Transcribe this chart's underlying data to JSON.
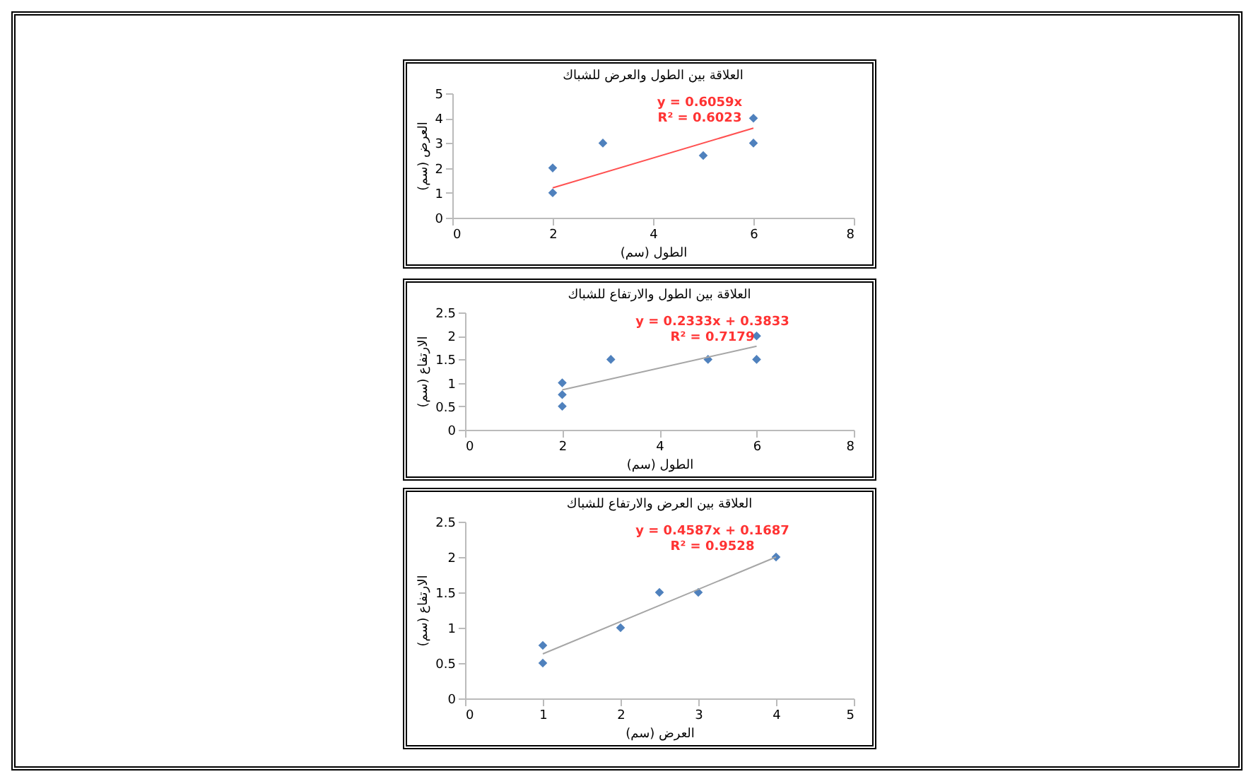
{
  "chart_data": [
    {
      "type": "scatter",
      "title": "العلاقة بين الطول والعرض للشباك",
      "xlabel": "الطول (سم)",
      "ylabel": "العرض (سم)",
      "marker": "diamond",
      "grid": false,
      "xlim": [
        0,
        8
      ],
      "xticks": [
        0,
        2,
        4,
        6,
        8
      ],
      "ylim": [
        0,
        5
      ],
      "yticks": [
        0,
        1,
        2,
        3,
        4,
        5
      ],
      "annotations": [
        "y = 0.6059x",
        "R² = 0.6023"
      ],
      "series": [
        {
          "color": "#4f81bd",
          "x": [
            2,
            2,
            3,
            5,
            6,
            6
          ],
          "values": [
            1,
            2,
            3,
            2.5,
            3,
            4
          ]
        },
        {
          "type": "line",
          "marker": "none",
          "color": "#ff5050",
          "x": [
            2,
            6
          ],
          "values": [
            1.2,
            3.6
          ]
        }
      ]
    },
    {
      "type": "scatter",
      "title": "العلاقة بين الطول والارتفاع للشباك",
      "xlabel": "الطول (سم)",
      "ylabel": "الارتفاع (سم)",
      "marker": "diamond",
      "grid": false,
      "xlim": [
        0,
        8
      ],
      "xticks": [
        0,
        2,
        4,
        6,
        8
      ],
      "ylim": [
        0,
        2.5
      ],
      "yticks": [
        0,
        0.5,
        1,
        1.5,
        2,
        2.5
      ],
      "annotations": [
        "y = 0.2333x + 0.3833",
        "R² = 0.7179"
      ],
      "series": [
        {
          "color": "#4f81bd",
          "x": [
            2,
            2,
            2,
            3,
            5,
            6,
            6
          ],
          "values": [
            0.5,
            0.75,
            1,
            1.5,
            1.5,
            1.5,
            2
          ]
        },
        {
          "type": "line",
          "marker": "none",
          "color": "#a6a6a6",
          "x": [
            2,
            6
          ],
          "values": [
            0.85,
            1.78
          ]
        }
      ]
    },
    {
      "type": "scatter",
      "title": "العلاقة بين العرض والارتفاع للشباك",
      "xlabel": "العرض (سم)",
      "ylabel": "الارتفاع (سم)",
      "marker": "diamond",
      "grid": false,
      "xlim": [
        0,
        5
      ],
      "xticks": [
        0,
        1,
        2,
        3,
        4,
        5
      ],
      "ylim": [
        0,
        2.5
      ],
      "yticks": [
        0,
        0.5,
        1,
        1.5,
        2,
        2.5
      ],
      "annotations": [
        "y = 0.4587x + 0.1687",
        "R² = 0.9528"
      ],
      "series": [
        {
          "color": "#4f81bd",
          "x": [
            1,
            1,
            2,
            2.5,
            3,
            4
          ],
          "values": [
            0.5,
            0.75,
            1,
            1.5,
            1.5,
            2
          ]
        },
        {
          "type": "line",
          "marker": "none",
          "color": "#a6a6a6",
          "x": [
            1,
            4
          ],
          "values": [
            0.63,
            2
          ]
        }
      ]
    }
  ]
}
